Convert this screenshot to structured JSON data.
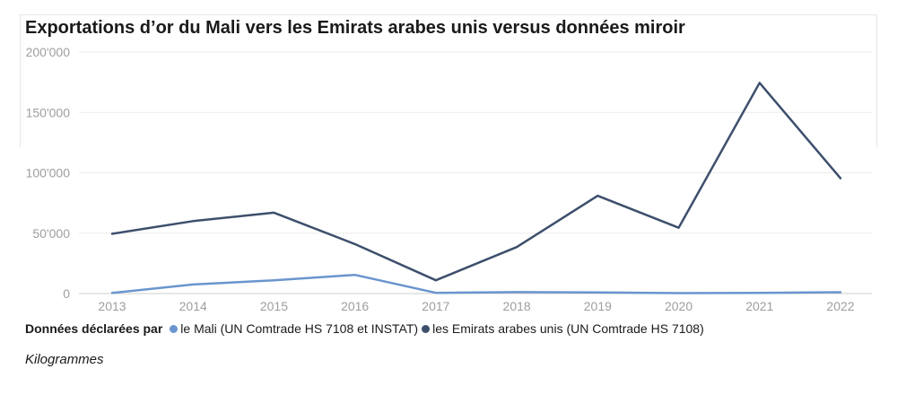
{
  "chart_data": {
    "type": "line",
    "title": "Exportations d’or du Mali vers les Emirats arabes unis versus données miroir",
    "x": [
      "2013",
      "2014",
      "2015",
      "2016",
      "2017",
      "2018",
      "2019",
      "2020",
      "2021",
      "2022"
    ],
    "y_ticks": [
      0,
      50000,
      100000,
      150000,
      200000
    ],
    "y_tick_labels": [
      "0",
      "50'000",
      "100'000",
      "150'000",
      "200'000"
    ],
    "ylim": [
      0,
      200000
    ],
    "grid": true,
    "legend_title": "Données déclarées par",
    "unit_label": "Kilogrammes",
    "series": [
      {
        "name": "le Mali (UN Comtrade HS 7108 et INSTAT)",
        "color": "#6a95cf",
        "values": [
          500,
          7500,
          11000,
          15500,
          600,
          1200,
          900,
          400,
          500,
          1100
        ]
      },
      {
        "name": "les Emirats arabes unis (UN Comtrade HS 7108)",
        "color": "#3d4f6c",
        "values": [
          49500,
          60000,
          67000,
          41000,
          11000,
          38500,
          81000,
          54500,
          174500,
          95500
        ]
      }
    ]
  }
}
